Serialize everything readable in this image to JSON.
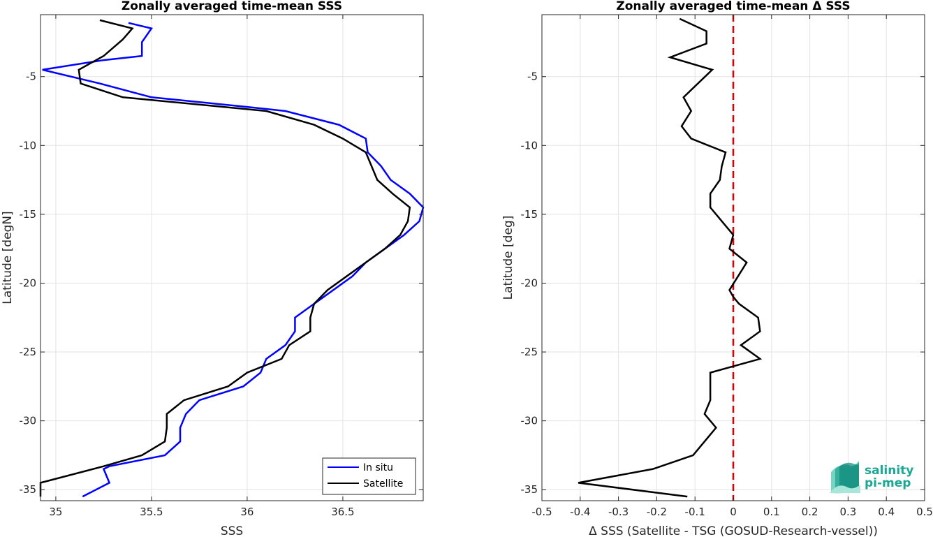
{
  "chart_data": [
    {
      "type": "line",
      "title": "Zonally averaged time-mean SSS",
      "xlabel": "SSS",
      "ylabel": "Latitude [degN]",
      "xlim": [
        34.92,
        36.92
      ],
      "ylim": [
        -35.8,
        -0.5
      ],
      "xticks": [
        35,
        35.5,
        36,
        36.5
      ],
      "xtick_labels": [
        "35",
        "35.5",
        "36",
        "36.5"
      ],
      "yticks": [
        -35,
        -30,
        -25,
        -20,
        -15,
        -10,
        -5
      ],
      "ytick_labels": [
        "-35",
        "-30",
        "-25",
        "-20",
        "-15",
        "-10",
        "-5"
      ],
      "grid": true,
      "legend_position": "bottom-right",
      "series": [
        {
          "name": "In situ",
          "color": "#0000ff",
          "points": [
            [
              35.38,
              -1.1
            ],
            [
              35.5,
              -1.5
            ],
            [
              35.45,
              -2.5
            ],
            [
              35.45,
              -3.5
            ],
            [
              35.25,
              -3.8
            ],
            [
              34.93,
              -4.5
            ],
            [
              35.23,
              -5.5
            ],
            [
              35.5,
              -6.5
            ],
            [
              36.0,
              -7.2
            ],
            [
              36.2,
              -7.5
            ],
            [
              36.48,
              -8.5
            ],
            [
              36.62,
              -9.5
            ],
            [
              36.63,
              -10.5
            ],
            [
              36.7,
              -11.5
            ],
            [
              36.75,
              -12.5
            ],
            [
              36.85,
              -13.5
            ],
            [
              36.92,
              -14.5
            ],
            [
              36.9,
              -15.5
            ],
            [
              36.82,
              -16.5
            ],
            [
              36.72,
              -17.5
            ],
            [
              36.62,
              -18.5
            ],
            [
              36.55,
              -19.5
            ],
            [
              36.4,
              -21.0
            ],
            [
              36.3,
              -22.0
            ],
            [
              36.25,
              -22.5
            ],
            [
              36.25,
              -23.5
            ],
            [
              36.2,
              -24.5
            ],
            [
              36.1,
              -25.5
            ],
            [
              36.07,
              -26.5
            ],
            [
              35.98,
              -27.5
            ],
            [
              35.75,
              -28.5
            ],
            [
              35.68,
              -29.5
            ],
            [
              35.65,
              -30.5
            ],
            [
              35.65,
              -31.5
            ],
            [
              35.57,
              -32.5
            ],
            [
              35.28,
              -33.3
            ],
            [
              35.25,
              -33.5
            ],
            [
              35.28,
              -34.5
            ],
            [
              35.14,
              -35.5
            ]
          ]
        },
        {
          "name": "Satellite",
          "color": "#000000",
          "points": [
            [
              35.23,
              -0.9
            ],
            [
              35.4,
              -1.5
            ],
            [
              35.35,
              -2.3
            ],
            [
              35.25,
              -3.5
            ],
            [
              35.12,
              -4.5
            ],
            [
              35.13,
              -5.5
            ],
            [
              35.35,
              -6.5
            ],
            [
              36.1,
              -7.5
            ],
            [
              36.35,
              -8.5
            ],
            [
              36.5,
              -9.5
            ],
            [
              36.62,
              -10.5
            ],
            [
              36.65,
              -11.5
            ],
            [
              36.68,
              -12.5
            ],
            [
              36.76,
              -13.5
            ],
            [
              36.85,
              -14.5
            ],
            [
              36.84,
              -15.5
            ],
            [
              36.8,
              -16.5
            ],
            [
              36.72,
              -17.5
            ],
            [
              36.62,
              -18.5
            ],
            [
              36.5,
              -19.7
            ],
            [
              36.42,
              -20.5
            ],
            [
              36.35,
              -21.5
            ],
            [
              36.33,
              -22.5
            ],
            [
              36.33,
              -23.5
            ],
            [
              36.22,
              -24.5
            ],
            [
              36.18,
              -25.5
            ],
            [
              36.0,
              -26.5
            ],
            [
              35.9,
              -27.5
            ],
            [
              35.67,
              -28.5
            ],
            [
              35.58,
              -29.5
            ],
            [
              35.58,
              -30.5
            ],
            [
              35.57,
              -31.5
            ],
            [
              35.45,
              -32.5
            ],
            [
              35.25,
              -33.3
            ],
            [
              34.92,
              -34.5
            ],
            [
              34.92,
              -35.5
            ]
          ]
        }
      ]
    },
    {
      "type": "line",
      "title": "Zonally averaged time-mean Δ SSS",
      "xlabel": "Δ SSS (Satellite - TSG (GOSUD-Research-vessel))",
      "ylabel": "Latitude [deg]",
      "xlim": [
        -0.5,
        0.5
      ],
      "ylim": [
        -35.8,
        -0.5
      ],
      "xticks": [
        -0.5,
        -0.4,
        -0.3,
        -0.2,
        -0.1,
        0,
        0.1,
        0.2,
        0.3,
        0.4,
        0.5
      ],
      "xtick_labels": [
        "-0.5",
        "-0.4",
        "-0.3",
        "-0.2",
        "-0.1",
        "0",
        "0.1",
        "0.2",
        "0.3",
        "0.4",
        "0.5"
      ],
      "yticks": [
        -35,
        -30,
        -25,
        -20,
        -15,
        -10,
        -5
      ],
      "ytick_labels": [
        "-35",
        "-30",
        "-25",
        "-20",
        "-15",
        "-10",
        "-5"
      ],
      "grid": true,
      "zero_line": {
        "x": 0,
        "color": "#dd0000",
        "style": "dashed"
      },
      "series": [
        {
          "color": "#000000",
          "points": [
            [
              -0.14,
              -0.8
            ],
            [
              -0.07,
              -1.7
            ],
            [
              -0.07,
              -2.6
            ],
            [
              -0.165,
              -3.6
            ],
            [
              -0.055,
              -4.5
            ],
            [
              -0.13,
              -6.5
            ],
            [
              -0.11,
              -7.5
            ],
            [
              -0.135,
              -8.6
            ],
            [
              -0.11,
              -9.5
            ],
            [
              -0.02,
              -10.5
            ],
            [
              -0.03,
              -11.5
            ],
            [
              -0.035,
              -12.5
            ],
            [
              -0.06,
              -13.5
            ],
            [
              -0.06,
              -14.5
            ],
            [
              0.0,
              -16.5
            ],
            [
              -0.01,
              -17.5
            ],
            [
              0.035,
              -18.5
            ],
            [
              -0.01,
              -20.5
            ],
            [
              0.0,
              -21.0
            ],
            [
              0.015,
              -21.5
            ],
            [
              0.065,
              -22.5
            ],
            [
              0.07,
              -23.5
            ],
            [
              0.02,
              -24.5
            ],
            [
              0.07,
              -25.5
            ],
            [
              -0.06,
              -26.5
            ],
            [
              -0.06,
              -27.5
            ],
            [
              -0.06,
              -28.5
            ],
            [
              -0.075,
              -29.5
            ],
            [
              -0.045,
              -30.5
            ],
            [
              -0.105,
              -32.5
            ],
            [
              -0.21,
              -33.5
            ],
            [
              -0.405,
              -34.5
            ],
            [
              -0.12,
              -35.5
            ]
          ]
        }
      ]
    }
  ],
  "legend": {
    "items": [
      "In situ",
      "Satellite"
    ]
  },
  "logo": {
    "line1": "salinity",
    "line2": "pi-mep"
  }
}
